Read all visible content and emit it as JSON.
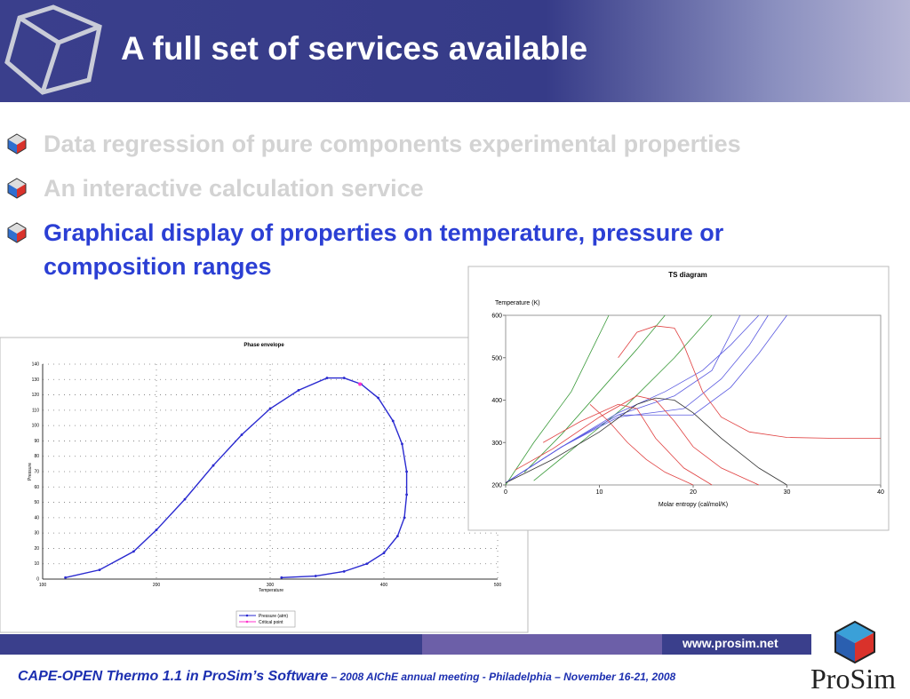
{
  "header": {
    "title": "A full set of services available"
  },
  "bullets": [
    {
      "text": "Data regression of pure components experimental properties",
      "color": "#d3d3d3"
    },
    {
      "text": "An interactive calculation service",
      "color": "#d3d3d3"
    },
    {
      "text": "Graphical display of properties on temperature, pressure or composition ranges",
      "color": "#2b3fd4"
    }
  ],
  "charts": [
    {
      "type": "line",
      "title": "Phase envelope",
      "xlabel": "Temperature",
      "ylabel": "Pressure",
      "xlim": [
        100,
        500
      ],
      "ylim": [
        0,
        140
      ],
      "xticks": [
        100,
        200,
        300,
        400,
        500
      ],
      "yticks": [
        0,
        10,
        20,
        30,
        40,
        50,
        60,
        70,
        80,
        90,
        100,
        110,
        120,
        130,
        140
      ],
      "grid": true,
      "markers": true,
      "series": [
        {
          "name": "Pressure (atm)",
          "color": "#2a2ad0",
          "x": [
            120,
            150,
            180,
            200,
            225,
            250,
            275,
            300,
            325,
            350,
            365,
            380,
            395,
            408,
            416,
            420,
            420,
            418,
            412,
            400,
            385,
            365,
            340,
            310
          ],
          "values": [
            1,
            6,
            18,
            32,
            52,
            74,
            94,
            111,
            123,
            131,
            131,
            127,
            118,
            103,
            88,
            70,
            55,
            40,
            28,
            17,
            10,
            5,
            2,
            1
          ]
        },
        {
          "name": "Critical point",
          "color": "#ff33cc",
          "x": [
            379
          ],
          "values": [
            127
          ]
        }
      ]
    },
    {
      "type": "line",
      "title": "TS diagram",
      "xlabel": "Molar entropy (cal/mol/K)",
      "ylabel": "Temperature (K)",
      "xlim": [
        0,
        40
      ],
      "ylim": [
        200,
        600
      ],
      "xticks": [
        0,
        10,
        20,
        30,
        40
      ],
      "yticks": [
        200,
        300,
        400,
        500,
        600
      ],
      "grid": false,
      "markers": false,
      "series": [
        {
          "color": "#3a9a3a",
          "x": [
            0,
            3,
            7,
            11
          ],
          "values": [
            200,
            300,
            420,
            600
          ]
        },
        {
          "color": "#3a9a3a",
          "x": [
            2,
            6,
            10,
            14,
            17
          ],
          "values": [
            230,
            320,
            420,
            520,
            600
          ]
        },
        {
          "color": "#3a9a3a",
          "x": [
            3,
            8,
            13,
            18,
            22
          ],
          "values": [
            210,
            300,
            390,
            500,
            600
          ]
        },
        {
          "color": "#5a5ae0",
          "x": [
            0,
            6,
            12,
            17,
            21,
            24,
            27
          ],
          "values": [
            205,
            290,
            370,
            420,
            470,
            530,
            600
          ]
        },
        {
          "color": "#5a5ae0",
          "x": [
            0,
            6,
            12,
            18,
            22,
            25
          ],
          "values": [
            205,
            290,
            365,
            410,
            470,
            600
          ]
        },
        {
          "color": "#5a5ae0",
          "x": [
            0,
            6,
            12,
            19,
            23,
            26,
            28
          ],
          "values": [
            205,
            290,
            360,
            380,
            450,
            530,
            600
          ]
        },
        {
          "color": "#5a5ae0",
          "x": [
            0,
            6,
            12,
            20,
            24,
            27,
            30
          ],
          "values": [
            205,
            290,
            365,
            365,
            430,
            510,
            600
          ]
        },
        {
          "color": "#e04040",
          "x": [
            12,
            14,
            16,
            18,
            19,
            21,
            23,
            26,
            30,
            35,
            40
          ],
          "values": [
            500,
            560,
            575,
            570,
            530,
            420,
            360,
            325,
            312,
            310,
            310
          ]
        },
        {
          "color": "#e04040",
          "x": [
            1,
            5,
            10,
            14,
            16,
            18,
            20,
            23,
            27
          ],
          "values": [
            235,
            285,
            360,
            410,
            400,
            350,
            290,
            240,
            200
          ]
        },
        {
          "color": "#e04040",
          "x": [
            4,
            8,
            12,
            14,
            16,
            19,
            22
          ],
          "values": [
            300,
            350,
            390,
            380,
            310,
            240,
            200
          ]
        },
        {
          "color": "#e04040",
          "x": [
            9,
            11,
            13,
            15,
            17,
            20
          ],
          "values": [
            390,
            350,
            300,
            260,
            230,
            200
          ]
        },
        {
          "color": "#333333",
          "x": [
            0,
            5,
            10,
            14,
            16,
            18,
            20,
            23,
            27,
            30
          ],
          "values": [
            205,
            260,
            325,
            390,
            405,
            400,
            370,
            310,
            240,
            200
          ]
        }
      ]
    }
  ],
  "footer": {
    "url": "www.prosim.net",
    "caption_main": "CAPE-OPEN Thermo 1.1 in ProSim’s Software",
    "caption_rest": " – 2008 AIChE annual meeting - Philadelphia – November  16-21, 2008",
    "logo": "ProSim"
  }
}
